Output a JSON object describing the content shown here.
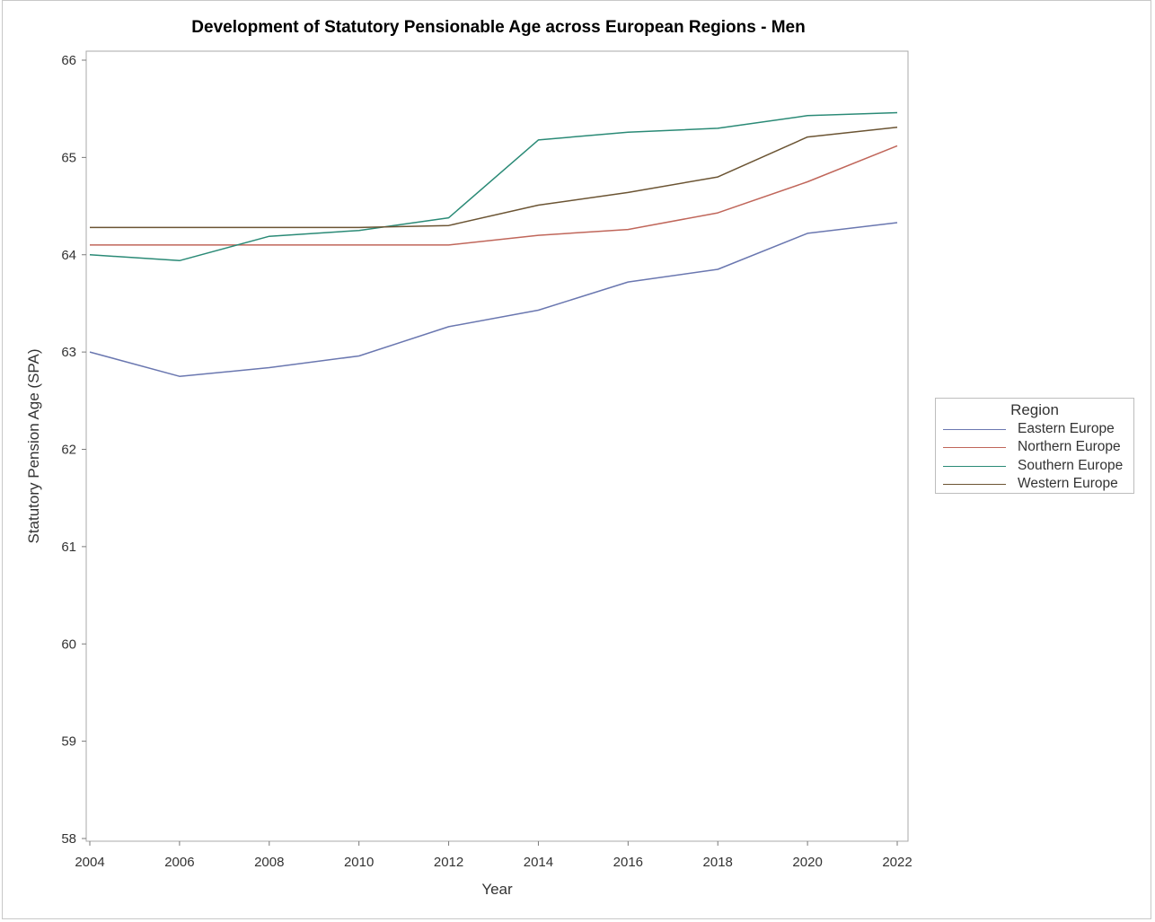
{
  "chart_data": {
    "type": "line",
    "title": "Development of Statutory Pensionable Age across European Regions - Men",
    "xlabel": "Year",
    "ylabel": "Statutory Pension Age (SPA)",
    "x": [
      2004,
      2006,
      2008,
      2010,
      2012,
      2014,
      2016,
      2018,
      2020,
      2022
    ],
    "xlim": [
      2004,
      2022
    ],
    "ylim": [
      58,
      66
    ],
    "x_ticks": [
      "2004",
      "2006",
      "2008",
      "2010",
      "2012",
      "2014",
      "2016",
      "2018",
      "2020",
      "2022"
    ],
    "y_ticks": [
      "58",
      "59",
      "60",
      "61",
      "62",
      "63",
      "64",
      "65",
      "66"
    ],
    "grid": false,
    "legend": {
      "title": "Region",
      "position": "right"
    },
    "series": [
      {
        "name": "Eastern Europe",
        "color": "#6a77b0",
        "values": [
          63.0,
          62.75,
          62.84,
          62.96,
          63.26,
          63.43,
          63.72,
          63.85,
          64.22,
          64.33
        ]
      },
      {
        "name": "Northern Europe",
        "color": "#c0665a",
        "values": [
          64.1,
          64.1,
          64.1,
          64.1,
          64.1,
          64.2,
          64.26,
          64.43,
          64.75,
          65.12
        ]
      },
      {
        "name": "Southern Europe",
        "color": "#2a8a76",
        "values": [
          64.0,
          63.94,
          64.19,
          64.25,
          64.38,
          65.18,
          65.26,
          65.3,
          65.43,
          65.46
        ]
      },
      {
        "name": "Western Europe",
        "color": "#6b5433",
        "values": [
          64.28,
          64.28,
          64.28,
          64.28,
          64.3,
          64.51,
          64.64,
          64.8,
          65.21,
          65.31
        ]
      }
    ]
  }
}
